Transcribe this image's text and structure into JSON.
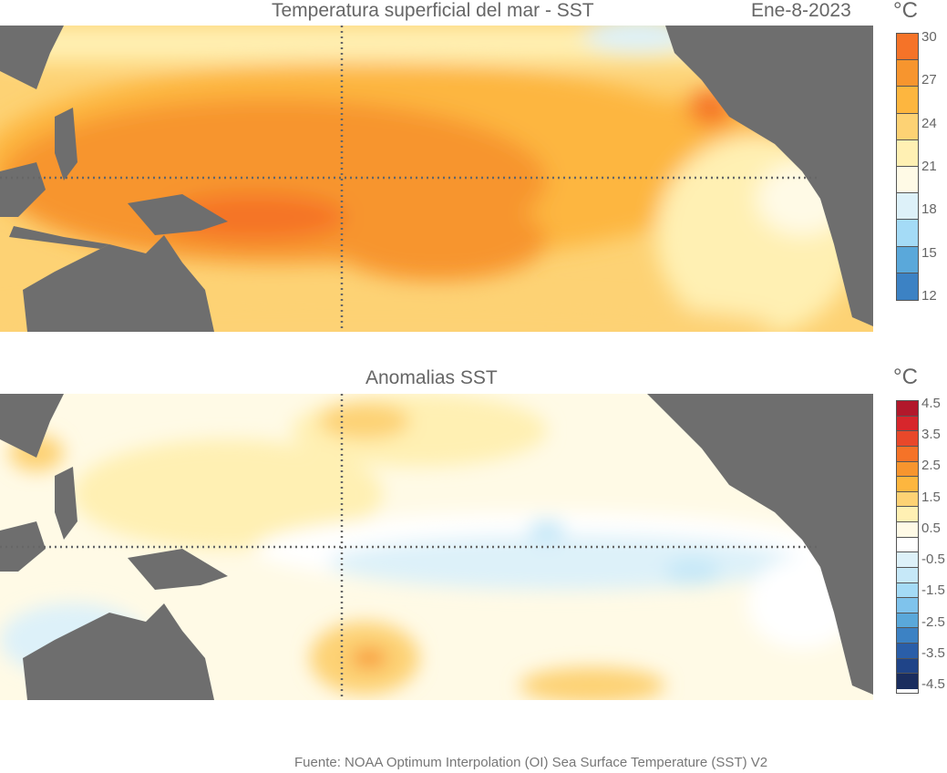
{
  "top_panel": {
    "title": "Temperatura superficial del mar - SST",
    "date": "Ene-8-2023",
    "unit": "°C",
    "colorbar_ticks": [
      "30",
      "27",
      "24",
      "21",
      "18",
      "15",
      "12"
    ],
    "colorbar_colors": [
      "#f57328",
      "#f7952e",
      "#fdb63f",
      "#fdd274",
      "#fff0b3",
      "#fffae6",
      "#ddf1f9",
      "#a4dbf6",
      "#5aa8da",
      "#3c82c4"
    ]
  },
  "bottom_panel": {
    "title": "Anomalias SST",
    "unit": "°C",
    "colorbar_ticks": [
      "4.5",
      "3.5",
      "2.5",
      "1.5",
      "0.5",
      "-0.5",
      "-1.5",
      "-2.5",
      "-3.5",
      "-4.5"
    ],
    "colorbar_colors": [
      "#b2182b",
      "#d7262c",
      "#e8482a",
      "#f57328",
      "#f7952e",
      "#fdb63f",
      "#fdd274",
      "#fff0b3",
      "#fffae6",
      "#ffffff",
      "#ddf1f9",
      "#c6e8f8",
      "#a4dbf6",
      "#7fc3ec",
      "#5aa8da",
      "#3c82c4",
      "#2a5ea8",
      "#1f4488",
      "#1a2d5e"
    ]
  },
  "colors": {
    "land": "#6e6e6e",
    "gridline": "#666666"
  },
  "source": "Fuente: NOAA Optimum Interpolation (OI) Sea Surface Temperature (SST) V2"
}
